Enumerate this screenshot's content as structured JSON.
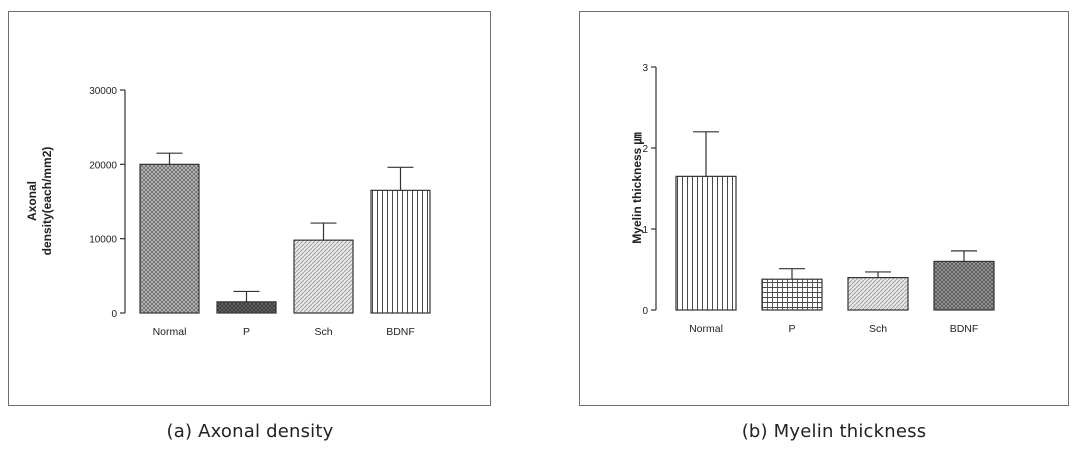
{
  "captions": {
    "a": "(a) Axonal density",
    "b": "(b) Myelin thickness"
  },
  "chart_data": [
    {
      "type": "bar",
      "xlabel": "",
      "ylabel": "Axonal density(each/mm2)",
      "ylim": [
        0,
        30000
      ],
      "yticks": [
        0,
        10000,
        20000,
        30000
      ],
      "ytick_labels": [
        "0",
        "10000",
        "20000",
        "30000"
      ],
      "categories": [
        "Normal",
        "P",
        "Sch",
        "BDNF"
      ],
      "values": [
        20000,
        1500,
        9800,
        16500
      ],
      "errors": [
        1500,
        1400,
        2300,
        3100
      ],
      "fills": [
        "crosshatch-fine",
        "dense-dark",
        "diagonal-light",
        "vertical-lines"
      ]
    },
    {
      "type": "bar",
      "xlabel": "",
      "ylabel": "Myelin thickness ㎛",
      "ylim": [
        0,
        3
      ],
      "yticks": [
        0,
        1,
        2,
        3
      ],
      "ytick_labels": [
        "0",
        "1",
        "2",
        "3"
      ],
      "categories": [
        "Normal",
        "P",
        "Sch",
        "BDNF"
      ],
      "values": [
        1.65,
        0.38,
        0.4,
        0.6
      ],
      "errors": [
        0.55,
        0.13,
        0.07,
        0.13
      ],
      "fills": [
        "vertical-lines",
        "grid",
        "diagonal-light",
        "crosshatch-dark"
      ]
    }
  ]
}
